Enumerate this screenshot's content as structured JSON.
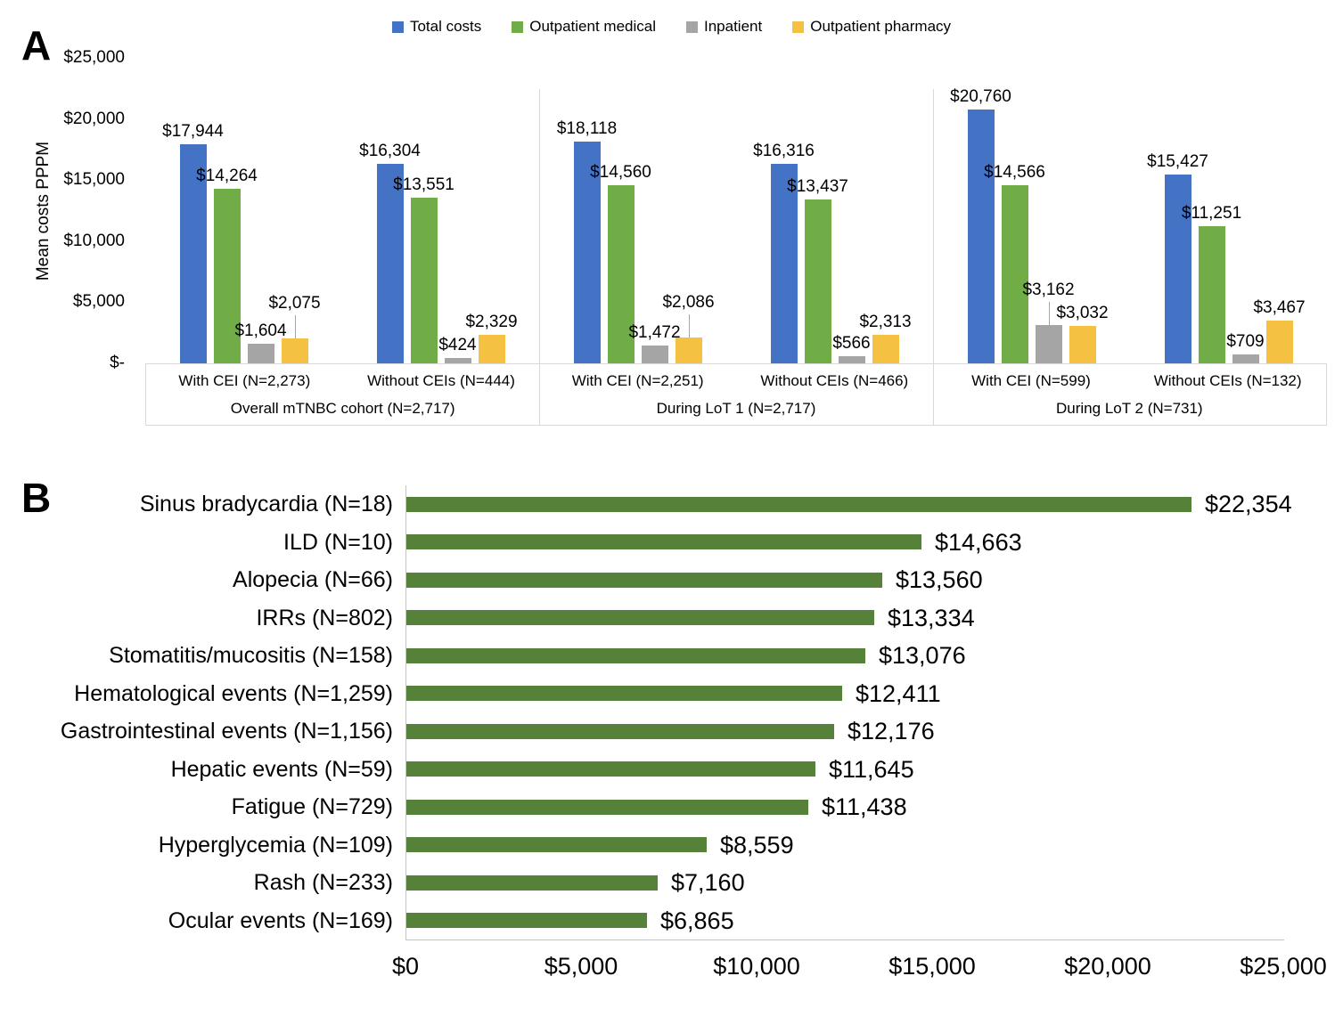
{
  "accent_colors": {
    "total_costs_blue": "#4472C4",
    "outpatient_medical_green": "#70AD47",
    "inpatient_gray": "#A5A5A5",
    "outpatient_pharmacy_yellow": "#F5C142",
    "panel_b_green": "#568139",
    "axis_gray": "#D9D9D9"
  },
  "chart_data": [
    {
      "type": "bar",
      "panel": "A",
      "orientation": "vertical",
      "ylabel": "Mean costs PPPM",
      "ylim": [
        0,
        25000
      ],
      "grid": false,
      "legend_position": "top",
      "y_tick_labels": [
        "$25,000",
        "$20,000",
        "$15,000",
        "$10,000",
        "$5,000",
        "$-"
      ],
      "series": [
        "Total costs",
        "Outpatient medical",
        "Inpatient",
        "Outpatient pharmacy"
      ],
      "series_colors": [
        "#4472C4",
        "#70AD47",
        "#A5A5A5",
        "#F5C142"
      ],
      "sections": [
        {
          "label": "Overall mTNBC cohort (N=2,717)",
          "groups": [
            {
              "label": "With CEI (N=2,273)",
              "values": [
                17944,
                14264,
                1604,
                2075
              ],
              "value_labels": [
                "$17,944",
                "$14,264",
                "$1,604",
                "$2,075"
              ],
              "raised_label_index": 3
            },
            {
              "label": "Without CEIs (N=444)",
              "values": [
                16304,
                13551,
                424,
                2329
              ],
              "value_labels": [
                "$16,304",
                "$13,551",
                "$424",
                "$2,329"
              ],
              "raised_label_index": -1
            }
          ]
        },
        {
          "label": "During LoT 1 (N=2,717)",
          "groups": [
            {
              "label": "With CEI (N=2,251)",
              "values": [
                18118,
                14560,
                1472,
                2086
              ],
              "value_labels": [
                "$18,118",
                "$14,560",
                "$1,472",
                "$2,086"
              ],
              "raised_label_index": 3
            },
            {
              "label": "Without CEIs (N=466)",
              "values": [
                16316,
                13437,
                566,
                2313
              ],
              "value_labels": [
                "$16,316",
                "$13,437",
                "$566",
                "$2,313"
              ],
              "raised_label_index": -1
            }
          ]
        },
        {
          "label": "During LoT 2 (N=731)",
          "groups": [
            {
              "label": "With CEI (N=599)",
              "values": [
                20760,
                14566,
                3162,
                3032
              ],
              "value_labels": [
                "$20,760",
                "$14,566",
                "$3,162",
                "$3,032"
              ],
              "raised_label_index": 2
            },
            {
              "label": "Without CEIs (N=132)",
              "values": [
                15427,
                11251,
                709,
                3467
              ],
              "value_labels": [
                "$15,427",
                "$11,251",
                "$709",
                "$3,467"
              ],
              "raised_label_index": -1
            }
          ]
        }
      ]
    },
    {
      "type": "bar",
      "panel": "B",
      "orientation": "horizontal",
      "xlim": [
        0,
        25000
      ],
      "grid": false,
      "bar_color": "#568139",
      "categories": [
        "Sinus bradycardia (N=18)",
        "ILD (N=10)",
        "Alopecia (N=66)",
        "IRRs (N=802)",
        "Stomatitis/mucositis (N=158)",
        "Hematological events (N=1,259)",
        "Gastrointestinal events (N=1,156)",
        "Hepatic events (N=59)",
        "Fatigue (N=729)",
        "Hyperglycemia (N=109)",
        "Rash (N=233)",
        "Ocular events (N=169)"
      ],
      "values": [
        22354,
        14663,
        13560,
        13334,
        13076,
        12411,
        12176,
        11645,
        11438,
        8559,
        7160,
        6865
      ],
      "value_labels": [
        "$22,354",
        "$14,663",
        "$13,560",
        "$13,334",
        "$13,076",
        "$12,411",
        "$12,176",
        "$11,645",
        "$11,438",
        "$8,559",
        "$7,160",
        "$6,865"
      ],
      "x_tick_labels": [
        "$0",
        "$5,000",
        "$10,000",
        "$15,000",
        "$20,000",
        "$25,000"
      ]
    }
  ]
}
